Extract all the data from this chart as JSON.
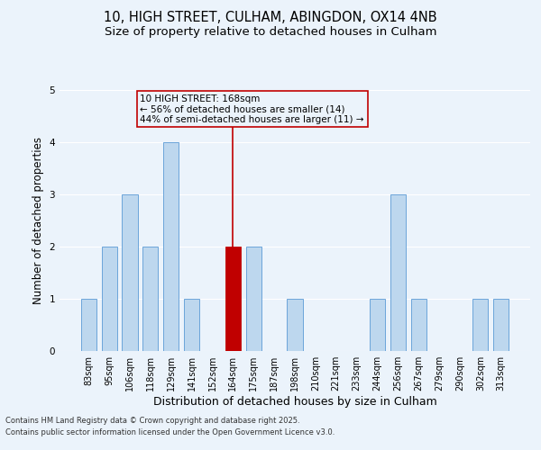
{
  "title_line1": "10, HIGH STREET, CULHAM, ABINGDON, OX14 4NB",
  "title_line2": "Size of property relative to detached houses in Culham",
  "xlabel": "Distribution of detached houses by size in Culham",
  "ylabel": "Number of detached properties",
  "footnote1": "Contains HM Land Registry data © Crown copyright and database right 2025.",
  "footnote2": "Contains public sector information licensed under the Open Government Licence v3.0.",
  "categories": [
    "83sqm",
    "95sqm",
    "106sqm",
    "118sqm",
    "129sqm",
    "141sqm",
    "152sqm",
    "164sqm",
    "175sqm",
    "187sqm",
    "198sqm",
    "210sqm",
    "221sqm",
    "233sqm",
    "244sqm",
    "256sqm",
    "267sqm",
    "279sqm",
    "290sqm",
    "302sqm",
    "313sqm"
  ],
  "values": [
    1,
    2,
    3,
    2,
    4,
    1,
    0,
    2,
    2,
    0,
    1,
    0,
    0,
    0,
    1,
    3,
    1,
    0,
    0,
    1,
    1
  ],
  "bar_color": "#BDD7EE",
  "bar_edge_color": "#5B9BD5",
  "highlight_index": 7,
  "highlight_bar_color": "#C00000",
  "highlight_line_color": "#C00000",
  "annotation_text": "10 HIGH STREET: 168sqm\n← 56% of detached houses are smaller (14)\n44% of semi-detached houses are larger (11) →",
  "annotation_box_color": "#C00000",
  "ylim": [
    0,
    5
  ],
  "yticks": [
    0,
    1,
    2,
    3,
    4,
    5
  ],
  "background_color": "#EBF3FB",
  "grid_color": "#FFFFFF",
  "title_fontsize": 10.5,
  "subtitle_fontsize": 9.5,
  "axis_label_fontsize": 8.5,
  "tick_fontsize": 7,
  "annotation_fontsize": 7.5,
  "footnote_fontsize": 6
}
